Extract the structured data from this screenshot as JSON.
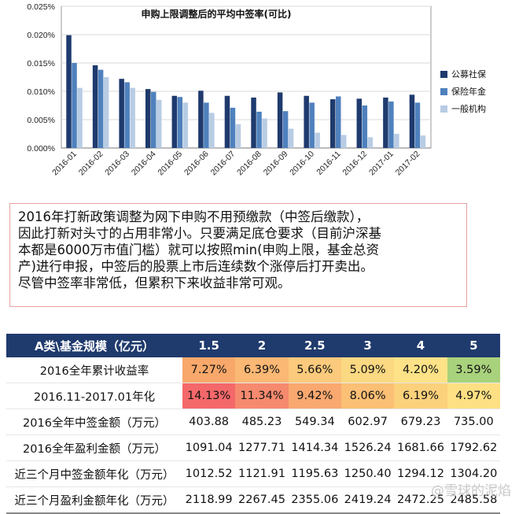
{
  "chart_data": {
    "type": "bar",
    "title": "申购上限调整后的平均中签率(可比)",
    "categories": [
      "2016-01",
      "2016-02",
      "2016-03",
      "2016-04",
      "2016-05",
      "2016-06",
      "2016-07",
      "2016-08",
      "2016-09",
      "2016-10",
      "2016-11",
      "2016-12",
      "2017-01",
      "2017-02"
    ],
    "series": [
      {
        "name": "公募社保",
        "color": "#1f3a6d",
        "values": [
          0.0199,
          0.0146,
          0.0122,
          0.0104,
          0.0092,
          0.0101,
          0.0092,
          0.0089,
          0.0098,
          0.0092,
          0.0086,
          0.0087,
          0.0089,
          0.0094
        ]
      },
      {
        "name": "保险年金",
        "color": "#4f81bd",
        "values": [
          0.015,
          0.0138,
          0.0116,
          0.0099,
          0.009,
          0.008,
          0.0071,
          0.0064,
          0.0065,
          0.008,
          0.0091,
          0.0075,
          0.0082,
          0.008
        ]
      },
      {
        "name": "一般机构",
        "color": "#b8cce4",
        "values": [
          0.0106,
          0.0125,
          0.0106,
          0.0085,
          0.008,
          0.0062,
          0.0042,
          0.0052,
          0.0034,
          0.0027,
          0.0023,
          0.0019,
          0.0025,
          0.0022
        ]
      }
    ],
    "yticks": [
      "0.000%",
      "0.005%",
      "0.010%",
      "0.015%",
      "0.020%",
      "0.025%"
    ],
    "ylim": [
      0,
      0.025
    ],
    "xlabel": "",
    "ylabel": "",
    "legend": "right"
  },
  "note": {
    "lines": [
      "2016年打新政策调整为网下申购不用预缴款（中签后缴款），",
      "因此打新对头寸的占用非常小。只要满足底仓要求（目前沪深基",
      "本都是6000万市值门槛）就可以按照min(申购上限，基金总资",
      "产)进行申报，中签后的股票上市后连续数个涨停后打开卖出。",
      "尽管中签率非常低，但累积下来收益非常可观。"
    ]
  },
  "table": {
    "header_label": "A类\\基金规模（亿元）",
    "sizes": [
      "1.5",
      "2",
      "2.5",
      "3",
      "4",
      "5"
    ],
    "rows": [
      {
        "label": "2016全年累计收益率",
        "values": [
          "7.27%",
          "6.39%",
          "5.66%",
          "5.09%",
          "4.20%",
          "3.59%"
        ],
        "colors": [
          "#f8a86a",
          "#fab874",
          "#fcca7c",
          "#fbd882",
          "#fde287",
          "#a9d27c"
        ]
      },
      {
        "label": "2016.11-2017.01年化",
        "values": [
          "14.13%",
          "11.34%",
          "9.42%",
          "8.06%",
          "6.19%",
          "4.97%"
        ],
        "colors": [
          "#f4686a",
          "#f68a6e",
          "#f9a870",
          "#fbbf75",
          "#fcd17c",
          "#fde083"
        ]
      },
      {
        "label": "2016全年中签金额（万元）",
        "values": [
          "403.88",
          "485.23",
          "549.34",
          "602.97",
          "679.23",
          "735.00"
        ]
      },
      {
        "label": "2016全年盈利金额（万元）",
        "values": [
          "1091.04",
          "1277.71",
          "1414.34",
          "1526.24",
          "1681.66",
          "1792.62"
        ]
      },
      {
        "label": "近三个月中签金额年化（万元）",
        "values": [
          "1012.52",
          "1121.91",
          "1195.63",
          "1250.40",
          "1294.12",
          "1304.20"
        ]
      },
      {
        "label": "近三个月盈利金额年化（万元）",
        "values": [
          "2118.99",
          "2267.45",
          "2355.06",
          "2419.24",
          "2472.25",
          "2485.58"
        ]
      }
    ]
  },
  "watermark": "@雪球的泥焰"
}
